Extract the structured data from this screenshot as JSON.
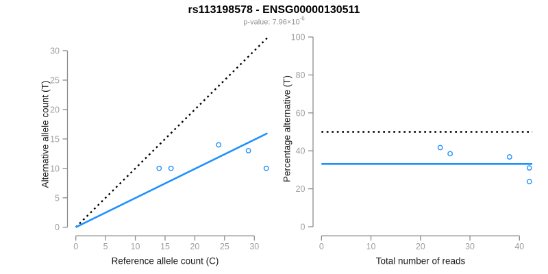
{
  "header": {
    "title": "rs113198578 - ENSG00000130511",
    "subtitle_prefix": "p-value: 7.96×10",
    "subtitle_exponent": "-6"
  },
  "colors": {
    "accent_blue": "#1E90FF",
    "line_black": "#000000",
    "axis_gray": "#8b8b8b",
    "tick_label_gray": "#9e9e9e"
  },
  "chart_data": [
    {
      "type": "scatter",
      "panel": "allele-counts",
      "xlabel": "Reference allele count (C)",
      "ylabel": "Alternative allele count (T)",
      "xlim": [
        0,
        32.2
      ],
      "ylim": [
        0,
        32.3
      ],
      "xticks": [
        0,
        5,
        10,
        15,
        20,
        25,
        30
      ],
      "yticks": [
        0,
        5,
        10,
        15,
        20,
        25,
        30
      ],
      "grid": false,
      "points": [
        [
          14,
          10
        ],
        [
          16,
          10
        ],
        [
          24,
          14
        ],
        [
          29,
          13
        ],
        [
          32,
          10
        ]
      ],
      "lines": [
        {
          "name": "identity",
          "style": "dotted",
          "color": "#000000",
          "from": [
            0,
            0
          ],
          "to": [
            32.2,
            32.2
          ]
        },
        {
          "name": "fit",
          "style": "solid",
          "color": "#1E90FF",
          "from": [
            0,
            0
          ],
          "to": [
            32.2,
            15.97
          ]
        }
      ]
    },
    {
      "type": "scatter",
      "panel": "percentage-alternative",
      "xlabel": "Total number of reads",
      "ylabel": "Percentage alternative (T)",
      "xlim": [
        0,
        42.6
      ],
      "ylim": [
        0,
        104
      ],
      "xticks": [
        0,
        10,
        20,
        30,
        40
      ],
      "yticks": [
        0,
        20,
        40,
        60,
        80,
        100
      ],
      "grid": false,
      "points": [
        [
          24,
          41.7
        ],
        [
          26,
          38.5
        ],
        [
          38,
          36.8
        ],
        [
          42,
          31.0
        ],
        [
          42,
          23.8
        ]
      ],
      "lines": [
        {
          "name": "expected-50pct",
          "style": "dotted",
          "color": "#000000",
          "from": [
            0,
            50
          ],
          "to": [
            42.6,
            50
          ]
        },
        {
          "name": "mean-percentage",
          "style": "solid",
          "color": "#1E90FF",
          "from": [
            0,
            33.1
          ],
          "to": [
            42.6,
            33.1
          ]
        }
      ]
    }
  ]
}
